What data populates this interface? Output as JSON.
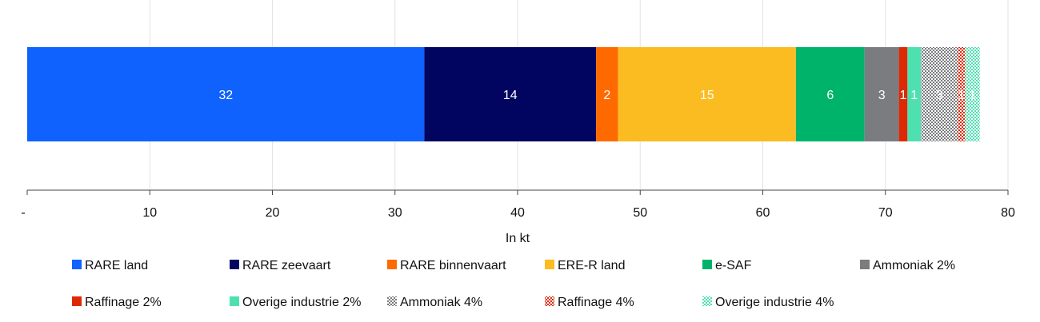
{
  "chart_data": {
    "type": "bar",
    "orientation": "horizontal",
    "stacked": true,
    "xlabel": "In kt",
    "xlim": [
      0,
      80
    ],
    "ticks": [
      0,
      10,
      20,
      30,
      40,
      50,
      60,
      70,
      80
    ],
    "tick_labels": [
      "-",
      "10",
      "20",
      "30",
      "40",
      "50",
      "60",
      "70",
      "80"
    ],
    "grid": true,
    "legend_position": "bottom",
    "series": [
      {
        "name": "RARE land",
        "value": 32.4,
        "label": "32",
        "color": "#0f62fe",
        "pattern": "solid"
      },
      {
        "name": "RARE zeevaart",
        "value": 14.0,
        "label": "14",
        "color": "#02055f",
        "pattern": "solid"
      },
      {
        "name": "RARE binnenvaart",
        "value": 1.8,
        "label": "2",
        "color": "#ff6a00",
        "pattern": "solid"
      },
      {
        "name": "ERE-R land",
        "value": 14.5,
        "label": "15",
        "color": "#fbbc22",
        "pattern": "solid"
      },
      {
        "name": "e-SAF",
        "value": 5.6,
        "label": "6",
        "color": "#00b36b",
        "pattern": "solid"
      },
      {
        "name": "Ammoniak 2%",
        "value": 2.8,
        "label": "3",
        "color": "#7a7c7f",
        "pattern": "solid"
      },
      {
        "name": "Raffinage 2%",
        "value": 0.7,
        "label": "1",
        "color": "#dd2a05",
        "pattern": "solid"
      },
      {
        "name": "Overige industrie 2%",
        "value": 1.1,
        "label": "1",
        "color": "#4fe0b0",
        "pattern": "solid"
      },
      {
        "name": "Ammoniak 4%",
        "value": 3.0,
        "label": "3",
        "color": "#7a7c7f",
        "pattern": "checker"
      },
      {
        "name": "Raffinage 4%",
        "value": 0.6,
        "label": "1",
        "color": "#dd2a05",
        "pattern": "checker"
      },
      {
        "name": "Overige industrie 4%",
        "value": 1.2,
        "label": "1",
        "color": "#4fe0b0",
        "pattern": "checker"
      }
    ]
  }
}
